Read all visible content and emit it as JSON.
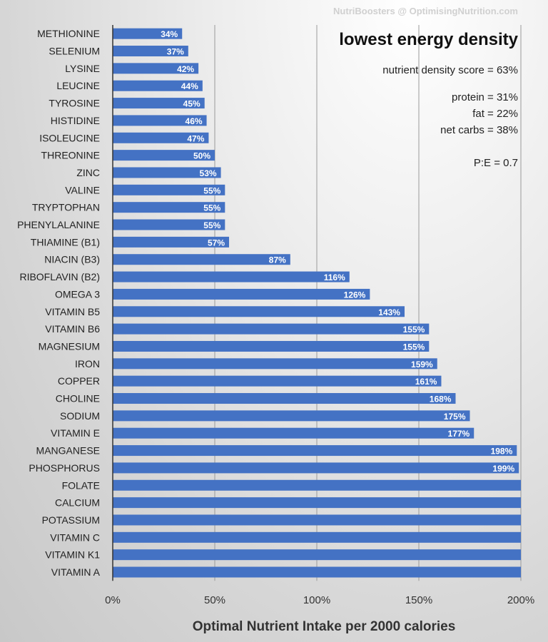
{
  "watermark": "NutriBoosters @ OptimisingNutrition.com",
  "annotations": {
    "title": "lowest energy density",
    "score": "nutrient density score = 63%",
    "protein": "protein = 31%",
    "fat": "fat = 22%",
    "carbs": "net carbs = 38%",
    "pe": "P:E = 0.7"
  },
  "chart_data": {
    "type": "bar",
    "orientation": "horizontal",
    "xlabel": "Optimal Nutrient Intake per 2000 calories",
    "xlim": [
      0,
      200
    ],
    "xticks": [
      "0%",
      "50%",
      "100%",
      "150%",
      "200%"
    ],
    "grid": true,
    "bar_color": "#4472c4",
    "categories": [
      "METHIONINE",
      "SELENIUM",
      "LYSINE",
      "LEUCINE",
      "TYROSINE",
      "HISTIDINE",
      "ISOLEUCINE",
      "THREONINE",
      "ZINC",
      "VALINE",
      "TRYPTOPHAN",
      "PHENYLALANINE",
      "THIAMINE (B1)",
      "NIACIN (B3)",
      "RIBOFLAVIN (B2)",
      "OMEGA 3",
      "VITAMIN B5",
      "VITAMIN B6",
      "MAGNESIUM",
      "IRON",
      "COPPER",
      "CHOLINE",
      "SODIUM",
      "VITAMIN E",
      "MANGANESE",
      "PHOSPHORUS",
      "FOLATE",
      "CALCIUM",
      "POTASSIUM",
      "VITAMIN C",
      "VITAMIN K1",
      "VITAMIN A"
    ],
    "values": [
      34,
      37,
      42,
      44,
      45,
      46,
      47,
      50,
      53,
      55,
      55,
      55,
      57,
      87,
      116,
      126,
      143,
      155,
      155,
      159,
      161,
      168,
      175,
      177,
      198,
      199,
      200,
      200,
      200,
      200,
      200,
      200
    ],
    "data_labels": [
      "34%",
      "37%",
      "42%",
      "44%",
      "45%",
      "46%",
      "47%",
      "50%",
      "53%",
      "55%",
      "55%",
      "55%",
      "57%",
      "87%",
      "116%",
      "126%",
      "143%",
      "155%",
      "155%",
      "159%",
      "161%",
      "168%",
      "175%",
      "177%",
      "198%",
      "199%",
      "",
      "",
      "",
      "",
      "",
      ""
    ]
  }
}
